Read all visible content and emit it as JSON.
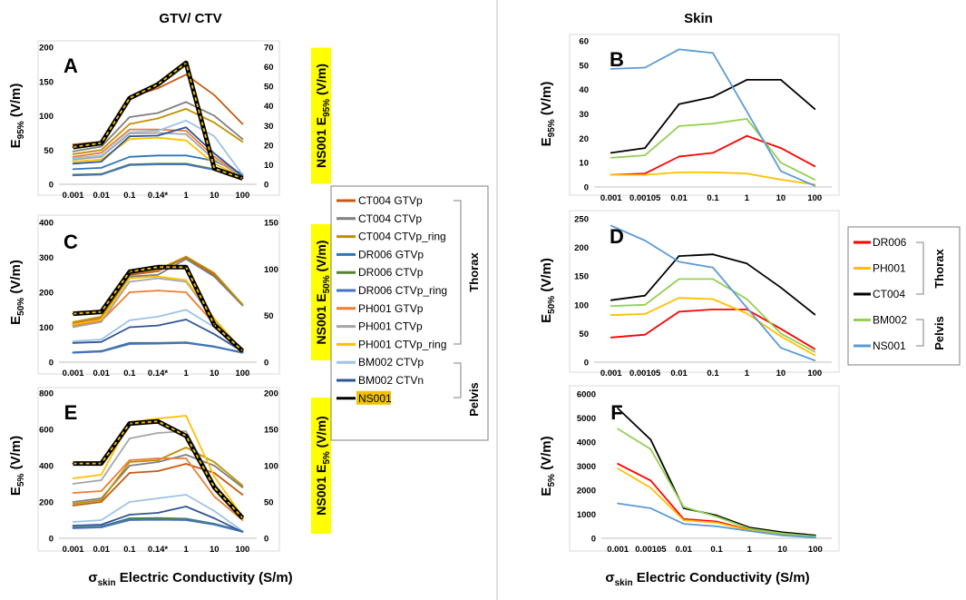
{
  "headers": {
    "left": "GTV/ CTV",
    "right": "Skin"
  },
  "xlabel": {
    "sigma": "σ",
    "sub": "skin",
    "rest": " Electric Conductivity (S/m)"
  },
  "left_legend": {
    "items": [
      "CT004 GTVp",
      "CT004 CTVp",
      "CT004 CTVp_ring",
      "DR006 GTVp",
      "DR006 CTVp",
      "DR006 CTVp_ring",
      "PH001 GTVp",
      "PH001 CTVp",
      "PH001 CTVp_ring",
      "BM002 CTVp",
      "BM002 CTVn",
      "NS001"
    ],
    "colors": [
      "#c55a11",
      "#7f7f7f",
      "#bf9000",
      "#2e75b6",
      "#548235",
      "#4472c4",
      "#ed7d31",
      "#a5a5a5",
      "#ffc000",
      "#9dc3e6",
      "#2f5597",
      "#000000"
    ],
    "groups": [
      "Thorax",
      "Pelvis"
    ]
  },
  "right_legend": {
    "items": [
      "DR006",
      "PH001",
      "CT004",
      "BM002",
      "NS001"
    ],
    "colors": [
      "#ff0000",
      "#ffc000",
      "#000000",
      "#92d050",
      "#5b9bd5"
    ],
    "groups": [
      "Thorax",
      "Pelvis"
    ]
  },
  "chart_data": [
    {
      "id": "A",
      "type": "line",
      "panel_label": "A",
      "categories": [
        "0.001",
        "0.01",
        "0.1",
        "0.14*",
        "1",
        "10",
        "100"
      ],
      "ylabel": {
        "main": "E",
        "sub": "95%",
        "unit": " (V/m)"
      },
      "y2label": {
        "main": "NS001 E",
        "sub": "95%",
        "unit": " (V/m)"
      },
      "ylim": [
        0,
        200
      ],
      "yticks": [
        0,
        50,
        100,
        150,
        200
      ],
      "y2lim": [
        0,
        70
      ],
      "y2ticks": [
        0,
        10,
        20,
        30,
        40,
        50,
        60,
        70
      ],
      "series": [
        {
          "name": "CT004 GTVp",
          "color": "#c55a11",
          "values": [
            58,
            62,
            127,
            140,
            160,
            130,
            88
          ]
        },
        {
          "name": "CT004 CTVp",
          "color": "#7f7f7f",
          "values": [
            48,
            55,
            98,
            104,
            120,
            100,
            66
          ]
        },
        {
          "name": "CT004 CTVp_ring",
          "color": "#bf9000",
          "values": [
            44,
            50,
            88,
            96,
            110,
            90,
            62
          ]
        },
        {
          "name": "DR006 GTVp",
          "color": "#2e75b6",
          "values": [
            22,
            24,
            40,
            42,
            42,
            34,
            15
          ]
        },
        {
          "name": "DR006 CTVp",
          "color": "#548235",
          "values": [
            14,
            15,
            29,
            30,
            30,
            22,
            10
          ]
        },
        {
          "name": "DR006 CTVp_ring",
          "color": "#4472c4",
          "values": [
            13,
            14,
            28,
            29,
            29,
            21,
            9
          ]
        },
        {
          "name": "PH001 GTVp",
          "color": "#ed7d31",
          "values": [
            40,
            46,
            80,
            80,
            78,
            40,
            12
          ]
        },
        {
          "name": "PH001 CTVp",
          "color": "#a5a5a5",
          "values": [
            36,
            40,
            74,
            75,
            73,
            36,
            11
          ]
        },
        {
          "name": "PH001 CTVp_ring",
          "color": "#ffc000",
          "values": [
            33,
            36,
            66,
            68,
            64,
            30,
            10
          ]
        },
        {
          "name": "BM002 CTVp",
          "color": "#9dc3e6",
          "values": [
            38,
            42,
            76,
            78,
            93,
            70,
            14
          ]
        },
        {
          "name": "BM002 CTVn",
          "color": "#2f5597",
          "values": [
            30,
            33,
            70,
            71,
            83,
            45,
            12
          ]
        },
        {
          "name": "NS001",
          "color": "#000000",
          "axis": "right",
          "values": [
            19,
            21,
            44,
            51,
            62,
            8,
            3
          ]
        }
      ]
    },
    {
      "id": "C",
      "type": "line",
      "panel_label": "C",
      "categories": [
        "0.001",
        "0.01",
        "0.1",
        "0.14*",
        "1",
        "10",
        "100"
      ],
      "ylabel": {
        "main": "E",
        "sub": "50%",
        "unit": " (V/m)"
      },
      "y2label": {
        "main": "NS001 E",
        "sub": "50%",
        "unit": " (V/m)"
      },
      "ylim": [
        0,
        400
      ],
      "yticks": [
        0,
        100,
        200,
        300,
        400
      ],
      "y2lim": [
        0,
        150
      ],
      "y2ticks": [
        0,
        50,
        100,
        150
      ],
      "series": [
        {
          "name": "CT004 GTVp",
          "color": "#c55a11",
          "values": [
            110,
            125,
            250,
            260,
            300,
            250,
            165
          ]
        },
        {
          "name": "CT004 CTVp",
          "color": "#7f7f7f",
          "values": [
            105,
            120,
            245,
            250,
            295,
            245,
            162
          ]
        },
        {
          "name": "CT004 CTVp_ring",
          "color": "#bf9000",
          "values": [
            115,
            130,
            255,
            265,
            302,
            255,
            165
          ]
        },
        {
          "name": "DR006 GTVp",
          "color": "#2e75b6",
          "values": [
            28,
            32,
            55,
            55,
            57,
            45,
            28
          ]
        },
        {
          "name": "DR006 CTVp",
          "color": "#548235",
          "values": [
            27,
            31,
            53,
            54,
            56,
            44,
            27
          ]
        },
        {
          "name": "DR006 CTVp_ring",
          "color": "#4472c4",
          "values": [
            27,
            30,
            52,
            53,
            55,
            44,
            27
          ]
        },
        {
          "name": "PH001 GTVp",
          "color": "#ed7d31",
          "values": [
            105,
            118,
            200,
            205,
            200,
            110,
            30
          ]
        },
        {
          "name": "PH001 CTVp",
          "color": "#a5a5a5",
          "values": [
            100,
            115,
            230,
            240,
            230,
            120,
            30
          ]
        },
        {
          "name": "PH001 CTVp_ring",
          "color": "#ffc000",
          "values": [
            108,
            122,
            240,
            245,
            235,
            125,
            32
          ]
        },
        {
          "name": "BM002 CTVp",
          "color": "#9dc3e6",
          "values": [
            60,
            65,
            120,
            130,
            150,
            100,
            35
          ]
        },
        {
          "name": "BM002 CTVn",
          "color": "#2f5597",
          "values": [
            55,
            58,
            100,
            105,
            122,
            80,
            30
          ]
        },
        {
          "name": "NS001",
          "color": "#000000",
          "axis": "right",
          "values": [
            52,
            54,
            97,
            102,
            102,
            40,
            12
          ]
        }
      ]
    },
    {
      "id": "E",
      "type": "line",
      "panel_label": "E",
      "categories": [
        "0.001",
        "0.01",
        "0.1",
        "0.14*",
        "1",
        "10",
        "100"
      ],
      "ylabel": {
        "main": "E",
        "sub": "5%",
        "unit": " (V/m)"
      },
      "y2label": {
        "main": "NS001 E",
        "sub": "5%",
        "unit": " (V/m)"
      },
      "ylim": [
        0,
        800
      ],
      "yticks": [
        0,
        200,
        400,
        600,
        800
      ],
      "y2lim": [
        0,
        200
      ],
      "y2ticks": [
        0,
        50,
        100,
        150,
        200
      ],
      "series": [
        {
          "name": "CT004 GTVp",
          "color": "#c55a11",
          "values": [
            180,
            200,
            360,
            370,
            410,
            360,
            240
          ]
        },
        {
          "name": "CT004 CTVp",
          "color": "#7f7f7f",
          "values": [
            200,
            220,
            400,
            420,
            460,
            400,
            280
          ]
        },
        {
          "name": "CT004 CTVp_ring",
          "color": "#bf9000",
          "values": [
            190,
            210,
            420,
            430,
            500,
            420,
            290
          ]
        },
        {
          "name": "DR006 GTVp",
          "color": "#2e75b6",
          "values": [
            60,
            65,
            110,
            112,
            108,
            80,
            40
          ]
        },
        {
          "name": "DR006 CTVp",
          "color": "#548235",
          "values": [
            58,
            62,
            105,
            108,
            104,
            78,
            38
          ]
        },
        {
          "name": "DR006 CTVp_ring",
          "color": "#4472c4",
          "values": [
            55,
            60,
            100,
            102,
            100,
            75,
            36
          ]
        },
        {
          "name": "PH001 GTVp",
          "color": "#ed7d31",
          "values": [
            250,
            260,
            430,
            440,
            440,
            230,
            100
          ]
        },
        {
          "name": "PH001 CTVp",
          "color": "#a5a5a5",
          "values": [
            300,
            320,
            550,
            580,
            590,
            300,
            110
          ]
        },
        {
          "name": "PH001 CTVp_ring",
          "color": "#ffc000",
          "values": [
            330,
            350,
            640,
            660,
            675,
            340,
            120
          ]
        },
        {
          "name": "BM002 CTVp",
          "color": "#9dc3e6",
          "values": [
            90,
            100,
            200,
            220,
            240,
            150,
            40
          ]
        },
        {
          "name": "BM002 CTVn",
          "color": "#2f5597",
          "values": [
            70,
            75,
            130,
            140,
            175,
            110,
            35
          ]
        },
        {
          "name": "NS001",
          "color": "#000000",
          "axis": "right",
          "values": [
            103,
            103,
            158,
            161,
            141,
            70,
            28
          ]
        }
      ]
    },
    {
      "id": "B",
      "type": "line",
      "panel_label": "B",
      "categories": [
        "0.001",
        "0.00105",
        "0.01",
        "0.1",
        "1",
        "10",
        "100"
      ],
      "ylabel": {
        "main": "E",
        "sub": "95%",
        "unit": " (V/m)"
      },
      "ylim": [
        0,
        60
      ],
      "yticks": [
        0,
        10,
        20,
        30,
        40,
        50,
        60
      ],
      "series": [
        {
          "name": "DR006",
          "color": "#ff0000",
          "values": [
            5,
            5.5,
            12.5,
            14,
            21,
            16,
            8.5
          ]
        },
        {
          "name": "PH001",
          "color": "#ffc000",
          "values": [
            5,
            5,
            6,
            6,
            5.5,
            3,
            1
          ]
        },
        {
          "name": "CT004",
          "color": "#000000",
          "values": [
            14,
            16,
            34,
            37,
            44,
            44,
            32
          ]
        },
        {
          "name": "BM002",
          "color": "#92d050",
          "values": [
            12,
            13,
            25,
            26,
            28,
            10,
            3
          ]
        },
        {
          "name": "NS001",
          "color": "#5b9bd5",
          "values": [
            48.5,
            49,
            56.5,
            55,
            31,
            6.5,
            0.5
          ]
        }
      ]
    },
    {
      "id": "D",
      "type": "line",
      "panel_label": "D",
      "categories": [
        "0.001",
        "0.00105",
        "0.01",
        "0.1",
        "1",
        "10",
        "100"
      ],
      "ylabel": {
        "main": "E",
        "sub": "50%",
        "unit": " (V/m)"
      },
      "ylim": [
        0,
        250
      ],
      "yticks": [
        0,
        50,
        100,
        150,
        200,
        250
      ],
      "series": [
        {
          "name": "DR006",
          "color": "#ff0000",
          "values": [
            43,
            48,
            88,
            92,
            92,
            58,
            23
          ]
        },
        {
          "name": "PH001",
          "color": "#ffc000",
          "values": [
            82,
            84,
            112,
            110,
            85,
            45,
            12
          ]
        },
        {
          "name": "CT004",
          "color": "#000000",
          "values": [
            108,
            116,
            185,
            188,
            172,
            130,
            83
          ]
        },
        {
          "name": "BM002",
          "color": "#92d050",
          "values": [
            98,
            100,
            145,
            145,
            110,
            50,
            18
          ]
        },
        {
          "name": "NS001",
          "color": "#5b9bd5",
          "values": [
            238,
            212,
            175,
            165,
            95,
            25,
            3
          ]
        }
      ]
    },
    {
      "id": "F",
      "type": "line",
      "panel_label": "F",
      "categories": [
        "0.001",
        "0.00105",
        "0.01",
        "0.1",
        "1",
        "10",
        "100"
      ],
      "ylabel": {
        "main": "E",
        "sub": "5%",
        "unit": " (V/m)"
      },
      "ylim": [
        0,
        6000
      ],
      "yticks": [
        0,
        1000,
        2000,
        3000,
        4000,
        5000,
        6000
      ],
      "series": [
        {
          "name": "DR006",
          "color": "#ff0000",
          "values": [
            3100,
            2400,
            800,
            700,
            350,
            150,
            50
          ]
        },
        {
          "name": "PH001",
          "color": "#ffc000",
          "values": [
            2900,
            2100,
            750,
            650,
            330,
            140,
            40
          ]
        },
        {
          "name": "CT004",
          "color": "#000000",
          "values": [
            5400,
            4100,
            1250,
            950,
            450,
            250,
            120
          ]
        },
        {
          "name": "BM002",
          "color": "#92d050",
          "values": [
            4550,
            3700,
            1300,
            900,
            400,
            200,
            80
          ]
        },
        {
          "name": "NS001",
          "color": "#5b9bd5",
          "values": [
            1450,
            1250,
            600,
            500,
            300,
            120,
            30
          ]
        }
      ]
    }
  ]
}
